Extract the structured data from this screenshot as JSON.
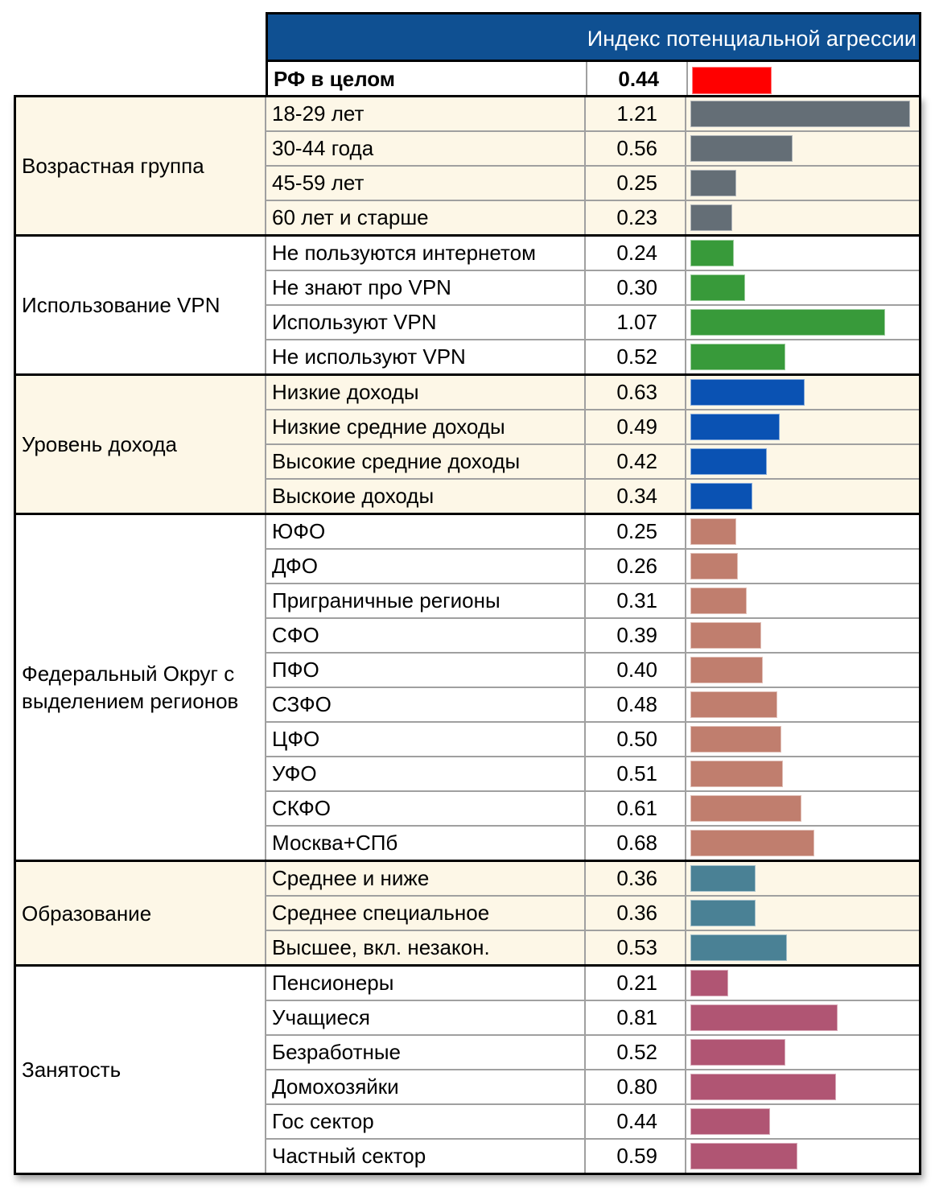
{
  "header": {
    "title": "Индекс потенциальной агрессии"
  },
  "total": {
    "label": "РФ в целом",
    "value": 0.44,
    "value_text": "0.44",
    "color": "#ff0000"
  },
  "chart_data": {
    "type": "bar",
    "title": "Индекс потенциальной агрессии",
    "groups": [
      {
        "name": "Возрастная группа",
        "color": "#646e76",
        "background": "#fdf7e7",
        "items": [
          {
            "label": "18-29 лет",
            "value": 1.21,
            "value_text": "1.21"
          },
          {
            "label": "30-44 года",
            "value": 0.56,
            "value_text": "0.56"
          },
          {
            "label": "45-59 лет",
            "value": 0.25,
            "value_text": "0.25"
          },
          {
            "label": "60 лет и старше",
            "value": 0.23,
            "value_text": "0.23"
          }
        ]
      },
      {
        "name": "Использование VPN",
        "color": "#389a3a",
        "background": "#ffffff",
        "items": [
          {
            "label": "Не пользуются интернетом",
            "value": 0.24,
            "value_text": "0.24"
          },
          {
            "label": "Не знают про VPN",
            "value": 0.3,
            "value_text": "0.30"
          },
          {
            "label": "Используют VPN",
            "value": 1.07,
            "value_text": "1.07"
          },
          {
            "label": "Не используют VPN",
            "value": 0.52,
            "value_text": "0.52"
          }
        ]
      },
      {
        "name": "Уровень дохода",
        "color": "#0a52b3",
        "background": "#fdf7e7",
        "items": [
          {
            "label": "Низкие доходы",
            "value": 0.63,
            "value_text": "0.63"
          },
          {
            "label": "Низкие средние доходы",
            "value": 0.49,
            "value_text": "0.49"
          },
          {
            "label": "Высокие средние доходы",
            "value": 0.42,
            "value_text": "0.42"
          },
          {
            "label": "Выскоие доходы",
            "value": 0.34,
            "value_text": "0.34"
          }
        ]
      },
      {
        "name": "Федеральный Округ с выделением регионов",
        "color": "#c07e6e",
        "background": "#ffffff",
        "items": [
          {
            "label": "ЮФО",
            "value": 0.25,
            "value_text": "0.25"
          },
          {
            "label": "ДФО",
            "value": 0.26,
            "value_text": "0.26"
          },
          {
            "label": "Приграничные регионы",
            "value": 0.31,
            "value_text": "0.31"
          },
          {
            "label": "СФО",
            "value": 0.39,
            "value_text": "0.39"
          },
          {
            "label": "ПФО",
            "value": 0.4,
            "value_text": "0.40"
          },
          {
            "label": "СЗФО",
            "value": 0.48,
            "value_text": "0.48"
          },
          {
            "label": "ЦФО",
            "value": 0.5,
            "value_text": "0.50"
          },
          {
            "label": "УФО",
            "value": 0.51,
            "value_text": "0.51"
          },
          {
            "label": "СКФО",
            "value": 0.61,
            "value_text": "0.61"
          },
          {
            "label": "Москва+СПб",
            "value": 0.68,
            "value_text": "0.68"
          }
        ]
      },
      {
        "name": "Образование",
        "color": "#4a8195",
        "background": "#fdf7e7",
        "items": [
          {
            "label": "Среднее и ниже",
            "value": 0.36,
            "value_text": "0.36"
          },
          {
            "label": "Среднее специальное",
            "value": 0.36,
            "value_text": "0.36"
          },
          {
            "label": "Высшее, вкл. незакон.",
            "value": 0.53,
            "value_text": "0.53"
          }
        ]
      },
      {
        "name": "Занятость",
        "color": "#b05573",
        "background": "#ffffff",
        "items": [
          {
            "label": "Пенсионеры",
            "value": 0.21,
            "value_text": "0.21"
          },
          {
            "label": "Учащиеся",
            "value": 0.81,
            "value_text": "0.81"
          },
          {
            "label": "Безработные",
            "value": 0.52,
            "value_text": "0.52"
          },
          {
            "label": "Домохозяйки",
            "value": 0.8,
            "value_text": "0.80"
          },
          {
            "label": "Гос сектор",
            "value": 0.44,
            "value_text": "0.44"
          },
          {
            "label": "Частный сектор",
            "value": 0.59,
            "value_text": "0.59"
          }
        ]
      }
    ]
  }
}
